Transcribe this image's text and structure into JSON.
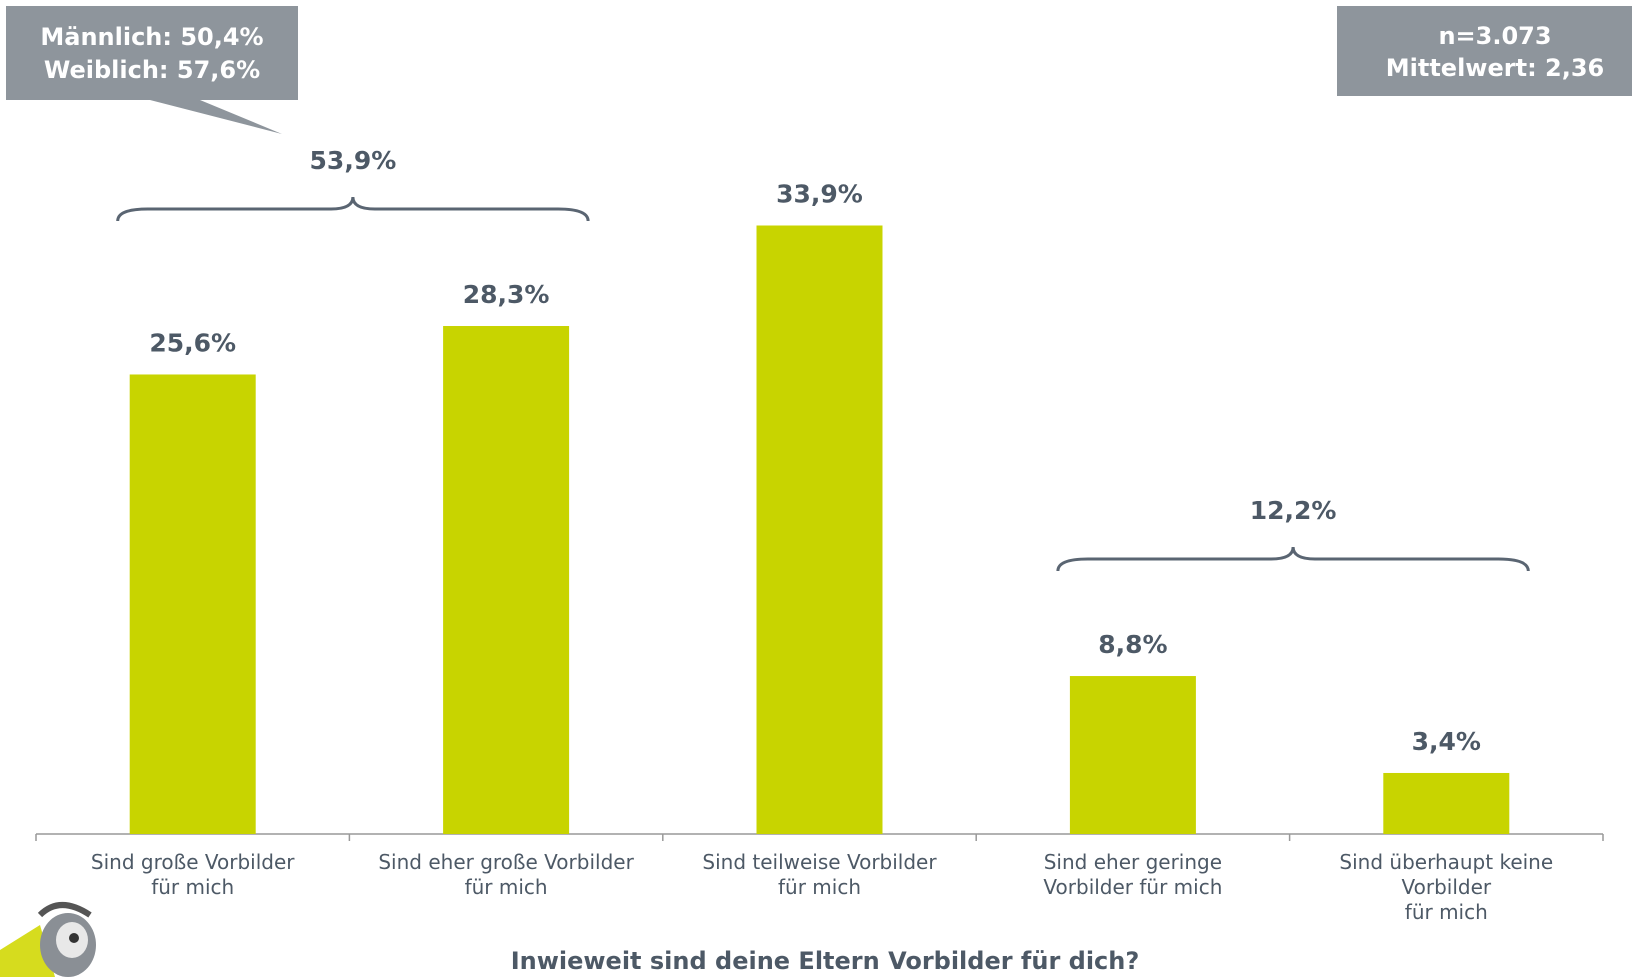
{
  "chart_data": {
    "type": "bar",
    "title": "Inwieweit sind deine Eltern Vorbilder für dich?",
    "categories": [
      [
        "Sind große Vorbilder",
        "für mich"
      ],
      [
        "Sind eher große Vorbilder",
        "für mich"
      ],
      [
        "Sind teilweise Vorbilder",
        "für mich"
      ],
      [
        "Sind eher geringe",
        "Vorbilder für mich"
      ],
      [
        "Sind überhaupt keine",
        "Vorbilder",
        "für mich"
      ]
    ],
    "values": [
      25.6,
      28.3,
      33.9,
      8.8,
      3.4
    ],
    "value_labels": [
      "25,6%",
      "28,3%",
      "33,9%",
      "8,8%",
      "3,4%"
    ],
    "color": "#c8d400",
    "ylim": [
      0,
      40
    ],
    "brackets": [
      {
        "from": 0,
        "to": 1,
        "value": 53.9,
        "label": "53,9%"
      },
      {
        "from": 3,
        "to": 4,
        "value": 12.2,
        "label": "12,2%"
      }
    ],
    "callout": [
      "Männlich: 50,4%",
      "Weiblich: 57,6%"
    ],
    "info": [
      "n=3.073",
      "Mittelwert: 2,36"
    ]
  }
}
